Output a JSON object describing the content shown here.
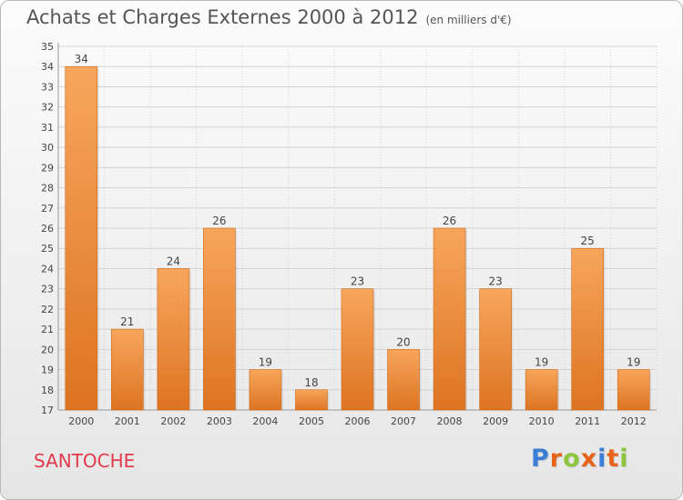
{
  "header": {
    "title": "Achats et Charges Externes 2000 à 2012",
    "unit": "(en milliers d'€)"
  },
  "commune": "SANTOCHE",
  "logo": {
    "text": "Proxiti",
    "letter_colors": [
      "#3a7fd5",
      "#e8631a",
      "#8cc63f",
      "#e8631a",
      "#3a7fd5",
      "#e8631a",
      "#8cc63f"
    ]
  },
  "colors": {
    "bar_light": "#f7a65c",
    "bar_dark": "#dd7422",
    "grid": "#d4d4d4",
    "axis_text": "#444444"
  },
  "chart_data": {
    "type": "bar",
    "categories": [
      "2000",
      "2001",
      "2002",
      "2003",
      "2004",
      "2005",
      "2006",
      "2007",
      "2008",
      "2009",
      "2010",
      "2011",
      "2012"
    ],
    "values": [
      34,
      21,
      24,
      26,
      19,
      18,
      23,
      20,
      26,
      23,
      19,
      25,
      19
    ],
    "title": "Achats et Charges Externes 2000 à 2012",
    "ylim": [
      17,
      35
    ],
    "yticks": [
      17,
      18,
      19,
      20,
      21,
      22,
      23,
      24,
      25,
      26,
      27,
      28,
      29,
      30,
      31,
      32,
      33,
      34,
      35
    ],
    "grid": true,
    "data_labels": true,
    "legend": "none"
  }
}
